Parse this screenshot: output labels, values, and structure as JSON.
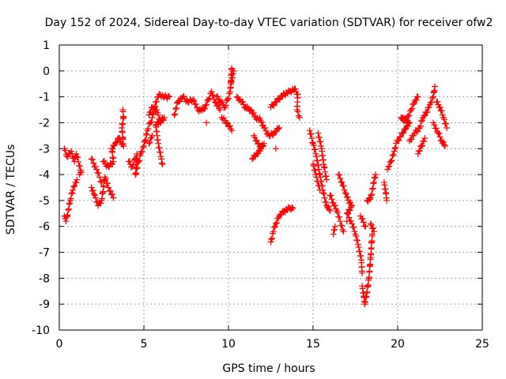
{
  "chart_data": {
    "type": "scatter",
    "title": "Day 152 of 2024, Sidereal Day-to-day VTEC variation (SDTVAR) for receiver ofw2",
    "xlabel": "GPS time / hours",
    "ylabel": "SDTVAR / TECUs",
    "xlim": [
      0,
      25
    ],
    "ylim": [
      -10,
      1
    ],
    "xticks": [
      0,
      5,
      10,
      15,
      20,
      25
    ],
    "yticks": [
      1,
      0,
      -1,
      -2,
      -3,
      -4,
      -5,
      -6,
      -7,
      -8,
      -9,
      -10
    ],
    "grid": true,
    "marker": "+",
    "series_color": "#ff0000",
    "series": [
      {
        "name": "SDTVAR",
        "trace_points": [
          [
            0.3,
            -3.0
          ],
          [
            0.45,
            -3.3
          ],
          [
            0.7,
            -3.1
          ],
          [
            0.9,
            -3.5
          ],
          [
            1.0,
            -3.2
          ],
          [
            1.3,
            -3.9
          ],
          [
            1.2,
            -4.0
          ],
          [
            0.3,
            -5.6
          ],
          [
            0.4,
            -5.8
          ],
          [
            0.65,
            -5.0
          ],
          [
            0.8,
            -4.6
          ],
          [
            0.95,
            -4.3
          ],
          [
            1.05,
            -4.2
          ],
          [
            1.9,
            -3.4
          ],
          [
            2.2,
            -3.8
          ],
          [
            2.5,
            -4.3
          ],
          [
            1.9,
            -4.5
          ],
          [
            2.1,
            -4.8
          ],
          [
            2.3,
            -5.2
          ],
          [
            2.5,
            -5.0
          ],
          [
            2.7,
            -4.1
          ],
          [
            2.9,
            -4.5
          ],
          [
            3.2,
            -4.9
          ],
          [
            2.6,
            -3.5
          ],
          [
            2.9,
            -3.7
          ],
          [
            3.2,
            -3.5
          ],
          [
            3.1,
            -3.0
          ],
          [
            3.3,
            -2.8
          ],
          [
            3.5,
            -2.6
          ],
          [
            3.8,
            -2.9
          ],
          [
            3.7,
            -2.2
          ],
          [
            3.8,
            -1.8
          ],
          [
            3.75,
            -1.5
          ],
          [
            4.1,
            -3.5
          ],
          [
            4.3,
            -3.7
          ],
          [
            4.6,
            -3.2
          ],
          [
            4.5,
            -4.0
          ],
          [
            4.8,
            -3.2
          ],
          [
            5.0,
            -2.9
          ],
          [
            5.2,
            -2.3
          ],
          [
            5.5,
            -1.8
          ],
          [
            5.7,
            -1.2
          ],
          [
            5.9,
            -0.9
          ],
          [
            6.2,
            -1.0
          ],
          [
            6.5,
            -1.0
          ],
          [
            5.3,
            -1.7
          ],
          [
            5.5,
            -1.4
          ],
          [
            5.8,
            -1.6
          ],
          [
            6.0,
            -2.0
          ],
          [
            6.2,
            -1.8
          ],
          [
            5.7,
            -2.1
          ],
          [
            5.85,
            -2.8
          ],
          [
            6.0,
            -3.3
          ],
          [
            6.1,
            -3.6
          ],
          [
            5.3,
            -2.8
          ],
          [
            5.5,
            -2.5
          ],
          [
            6.8,
            -1.7
          ],
          [
            7.0,
            -1.2
          ],
          [
            7.3,
            -1.0
          ],
          [
            7.6,
            -1.2
          ],
          [
            7.9,
            -1.1
          ],
          [
            8.2,
            -1.5
          ],
          [
            8.5,
            -1.5
          ],
          [
            8.7,
            -1.3
          ],
          [
            9.0,
            -0.8
          ],
          [
            9.2,
            -1.2
          ],
          [
            9.5,
            -1.5
          ],
          [
            8.7,
            -2.0
          ],
          [
            9.3,
            -1.0
          ],
          [
            9.8,
            -1.4
          ],
          [
            10.1,
            -0.8
          ],
          [
            10.2,
            0.1
          ],
          [
            10.3,
            0.0
          ],
          [
            10.15,
            -0.5
          ],
          [
            9.6,
            -1.8
          ],
          [
            9.9,
            -2.0
          ],
          [
            10.2,
            -2.3
          ],
          [
            10.5,
            -1.0
          ],
          [
            10.8,
            -1.2
          ],
          [
            11.0,
            -1.4
          ],
          [
            11.3,
            -1.5
          ],
          [
            11.6,
            -1.8
          ],
          [
            11.9,
            -1.9
          ],
          [
            12.1,
            -2.2
          ],
          [
            12.4,
            -2.5
          ],
          [
            12.7,
            -2.4
          ],
          [
            13.0,
            -2.2
          ],
          [
            11.5,
            -2.5
          ],
          [
            11.9,
            -3.0
          ],
          [
            12.1,
            -2.8
          ],
          [
            11.7,
            -3.2
          ],
          [
            11.4,
            -3.4
          ],
          [
            12.8,
            -3.0
          ],
          [
            12.5,
            -1.4
          ],
          [
            12.8,
            -1.2
          ],
          [
            13.1,
            -1.0
          ],
          [
            13.3,
            -0.9
          ],
          [
            13.6,
            -0.8
          ],
          [
            13.9,
            -0.7
          ],
          [
            14.1,
            -0.9
          ],
          [
            14.05,
            -1.5
          ],
          [
            14.2,
            -1.8
          ],
          [
            12.5,
            -6.6
          ],
          [
            12.65,
            -6.2
          ],
          [
            12.8,
            -5.9
          ],
          [
            13.0,
            -5.6
          ],
          [
            13.3,
            -5.4
          ],
          [
            13.6,
            -5.3
          ],
          [
            13.8,
            -5.3
          ],
          [
            14.8,
            -2.3
          ],
          [
            15.0,
            -2.8
          ],
          [
            15.2,
            -3.3
          ],
          [
            15.4,
            -4.0
          ],
          [
            15.6,
            -4.7
          ],
          [
            15.8,
            -5.2
          ],
          [
            16.0,
            -5.4
          ],
          [
            15.3,
            -2.4
          ],
          [
            15.5,
            -3.0
          ],
          [
            15.65,
            -3.7
          ],
          [
            15.8,
            -4.2
          ],
          [
            15.0,
            -3.6
          ],
          [
            15.2,
            -4.1
          ],
          [
            15.4,
            -4.6
          ],
          [
            16.0,
            -4.8
          ],
          [
            16.2,
            -5.1
          ],
          [
            16.4,
            -5.4
          ],
          [
            16.6,
            -5.8
          ],
          [
            16.8,
            -6.2
          ],
          [
            16.5,
            -4.0
          ],
          [
            16.7,
            -4.3
          ],
          [
            16.9,
            -4.7
          ],
          [
            17.1,
            -5.0
          ],
          [
            17.3,
            -5.2
          ],
          [
            17.0,
            -5.5
          ],
          [
            17.3,
            -5.9
          ],
          [
            17.5,
            -6.3
          ],
          [
            17.7,
            -6.8
          ],
          [
            17.85,
            -7.3
          ],
          [
            17.9,
            -7.8
          ],
          [
            16.3,
            -6.0
          ],
          [
            16.2,
            -6.3
          ],
          [
            17.0,
            -5.8
          ],
          [
            17.9,
            -8.3
          ],
          [
            18.0,
            -8.7
          ],
          [
            18.05,
            -9.0
          ],
          [
            18.15,
            -8.7
          ],
          [
            18.3,
            -8.0
          ],
          [
            18.4,
            -7.2
          ],
          [
            18.5,
            -6.3
          ],
          [
            17.8,
            -5.6
          ],
          [
            18.1,
            -6.0
          ],
          [
            18.2,
            -5.0
          ],
          [
            18.4,
            -4.9
          ],
          [
            18.6,
            -4.3
          ],
          [
            18.7,
            -4.0
          ],
          [
            18.4,
            -5.9
          ],
          [
            18.6,
            -6.2
          ],
          [
            19.2,
            -4.3
          ],
          [
            19.3,
            -4.7
          ],
          [
            19.35,
            -5.0
          ],
          [
            19.4,
            -3.8
          ],
          [
            19.6,
            -3.5
          ],
          [
            19.8,
            -3.1
          ],
          [
            19.9,
            -2.8
          ],
          [
            20.3,
            -2.4
          ],
          [
            20.5,
            -2.2
          ],
          [
            20.7,
            -2.0
          ],
          [
            20.2,
            -1.8
          ],
          [
            20.5,
            -1.9
          ],
          [
            20.8,
            -1.5
          ],
          [
            21.0,
            -1.2
          ],
          [
            21.2,
            -1.0
          ],
          [
            20.7,
            -2.7
          ],
          [
            21.0,
            -2.4
          ],
          [
            21.3,
            -2.2
          ],
          [
            21.5,
            -1.8
          ],
          [
            21.7,
            -1.6
          ],
          [
            21.9,
            -1.3
          ],
          [
            22.1,
            -1.0
          ],
          [
            22.2,
            -0.6
          ],
          [
            21.2,
            -3.2
          ],
          [
            21.4,
            -2.9
          ],
          [
            21.6,
            -2.6
          ],
          [
            22.3,
            -1.2
          ],
          [
            22.5,
            -1.4
          ],
          [
            22.7,
            -1.8
          ],
          [
            22.9,
            -2.2
          ],
          [
            22.1,
            -2.0
          ],
          [
            22.4,
            -2.4
          ],
          [
            22.6,
            -2.7
          ],
          [
            22.8,
            -2.9
          ]
        ]
      }
    ]
  }
}
